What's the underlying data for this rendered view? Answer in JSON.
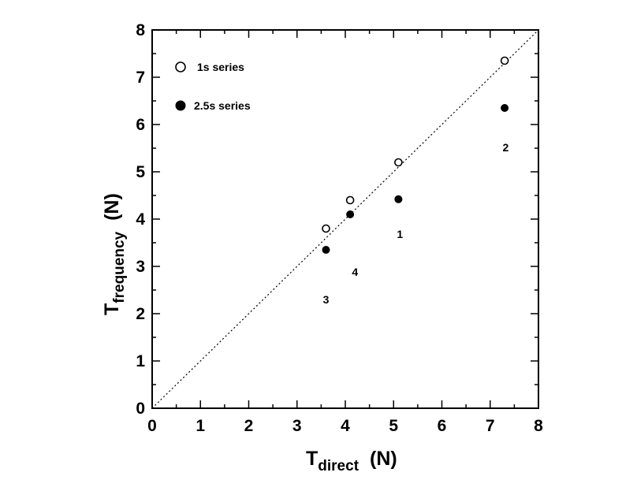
{
  "chart_data": {
    "type": "scatter",
    "xlabel": {
      "main": "T",
      "sub": "direct",
      "unit": "(N)"
    },
    "ylabel": {
      "main": "T",
      "sub": "frequency",
      "unit": "(N)"
    },
    "xlim": [
      0,
      8
    ],
    "ylim": [
      0,
      8
    ],
    "xticks": [
      "0",
      "1",
      "2",
      "3",
      "4",
      "5",
      "6",
      "7",
      "8"
    ],
    "yticks": [
      "0",
      "1",
      "2",
      "3",
      "4",
      "5",
      "6",
      "7",
      "8"
    ],
    "grid": false,
    "legend_position": "top-left",
    "reference_line": {
      "style": "dotted",
      "from": [
        0,
        0
      ],
      "to": [
        8,
        8
      ]
    },
    "series": [
      {
        "name": "1s series",
        "marker": "open-circle",
        "x": [
          3.6,
          4.1,
          5.1,
          7.3
        ],
        "y": [
          3.8,
          4.4,
          5.2,
          7.35
        ]
      },
      {
        "name": "2.5s series",
        "marker": "filled-circle",
        "x": [
          3.6,
          4.1,
          5.1,
          7.3
        ],
        "y": [
          3.35,
          4.1,
          4.42,
          6.35
        ]
      }
    ],
    "point_labels": [
      {
        "text": "1",
        "x": 5.13,
        "y": 3.68
      },
      {
        "text": "2",
        "x": 7.32,
        "y": 5.52
      },
      {
        "text": "3",
        "x": 3.6,
        "y": 2.3
      },
      {
        "text": "4",
        "x": 4.2,
        "y": 2.88
      }
    ]
  }
}
